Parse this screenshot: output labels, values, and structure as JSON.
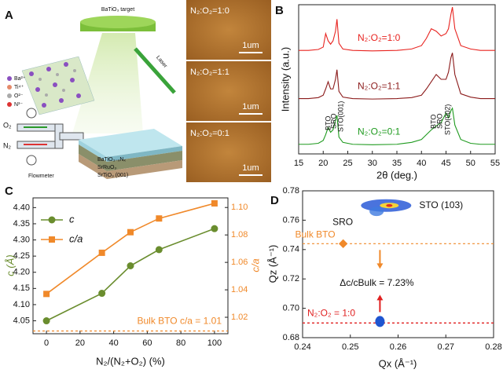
{
  "panel_a": {
    "label": "A",
    "target": "BaTiO₃ target",
    "laser": "Laser",
    "ions": [
      "Ba²⁺",
      "Ti⁴⁺",
      "O²⁻",
      "N³⁻"
    ],
    "gases": [
      "O₂",
      "N₂"
    ],
    "flowmeter": "Flowmeter",
    "layers": [
      "BaTiO₃₋ₓNₓ",
      "SrRuO₃",
      "SrTiO₃ (001)"
    ],
    "afm": [
      {
        "label": "N₂:O₂=1:0",
        "scale": "1um"
      },
      {
        "label": "N₂:O₂=1:1",
        "scale": "1um"
      },
      {
        "label": "N₂:O₂=0:1",
        "scale": "1um"
      }
    ]
  },
  "chart_data": [
    {
      "type": "line",
      "label": "B",
      "ylabel": "Intensity (a.u.)",
      "xlabel": "2θ (deg.)",
      "x": [
        15,
        17,
        19,
        20,
        20.5,
        21,
        21.5,
        22,
        22.5,
        22.8,
        23.2,
        24,
        26,
        30,
        35,
        38,
        40,
        41,
        42,
        43,
        44,
        45,
        45.5,
        46,
        46.3,
        46.8,
        48,
        50,
        52,
        55
      ],
      "xlim": [
        15,
        55
      ],
      "xticks": [
        15,
        20,
        25,
        30,
        35,
        40,
        45,
        50,
        55
      ],
      "ylim": [
        0,
        3.1
      ],
      "series": [
        {
          "name": "N₂:O₂=1:0",
          "color": "#e8231f",
          "values": [
            2.15,
            2.15,
            2.17,
            2.22,
            2.5,
            2.35,
            2.28,
            2.35,
            2.55,
            2.8,
            2.3,
            2.18,
            2.15,
            2.14,
            2.15,
            2.18,
            2.25,
            2.4,
            2.6,
            2.55,
            2.45,
            2.5,
            2.6,
            2.9,
            3.05,
            2.6,
            2.25,
            2.18,
            2.15,
            2.15
          ]
        },
        {
          "name": "N₂:O₂=1:1",
          "color": "#8b1a1a",
          "values": [
            1.15,
            1.15,
            1.17,
            1.22,
            1.35,
            1.5,
            1.35,
            1.35,
            1.55,
            1.75,
            1.3,
            1.18,
            1.15,
            1.14,
            1.15,
            1.17,
            1.22,
            1.35,
            1.5,
            1.65,
            1.55,
            1.55,
            1.7,
            2.0,
            2.1,
            1.65,
            1.25,
            1.18,
            1.15,
            1.15
          ]
        },
        {
          "name": "N₂:O₂=0:1",
          "color": "#1e9a1e",
          "values": [
            0.2,
            0.2,
            0.22,
            0.28,
            0.4,
            0.55,
            0.45,
            0.5,
            0.7,
            0.8,
            0.35,
            0.24,
            0.2,
            0.19,
            0.2,
            0.24,
            0.3,
            0.4,
            0.5,
            0.58,
            0.65,
            0.85,
            0.75,
            0.9,
            0.95,
            0.6,
            0.3,
            0.22,
            0.2,
            0.2
          ]
        }
      ],
      "annotations": [
        "BTO",
        "SRO",
        "STO(001)",
        "BTO",
        "SRO",
        "STO(002)"
      ]
    },
    {
      "type": "line",
      "label": "C",
      "xlabel": "N₂/(N₂+O₂) (%)",
      "ylabel": "c (Å)",
      "y2label": "c/a",
      "x": [
        0,
        33,
        50,
        67,
        100
      ],
      "xlim": [
        -8,
        108
      ],
      "xticks": [
        0,
        20,
        40,
        60,
        80,
        100
      ],
      "ylim": [
        4.01,
        4.43
      ],
      "yticks": [
        4.05,
        {
          "value": 4.1,
          "label": "4.10"
        },
        4.15,
        {
          "value": 4.2,
          "label": "4.20"
        },
        4.25,
        {
          "value": 4.3,
          "label": "4.30"
        },
        4.35,
        {
          "value": 4.4,
          "label": "4.40"
        }
      ],
      "y2lim": [
        1.008,
        1.107
      ],
      "y2ticks": [
        1.02,
        1.04,
        1.06,
        1.08,
        {
          "value": 1.1,
          "label": "1.10"
        }
      ],
      "legend": "upper left",
      "series": [
        {
          "name": "c",
          "color": "#6a8d2e",
          "marker": "circle",
          "values": [
            4.05,
            4.135,
            4.22,
            4.27,
            4.335
          ]
        },
        {
          "name": "c/a",
          "color": "#f0892a",
          "marker": "square",
          "axis": "y2",
          "values": [
            1.037,
            1.067,
            1.082,
            1.092,
            1.103
          ]
        }
      ],
      "hline": {
        "value": 1.01,
        "axis": "y2",
        "color": "#f0892a",
        "label": "Bulk BTO c/a = 1.01"
      }
    },
    {
      "type": "scatter",
      "label": "D",
      "xlabel": "Qx (Å⁻¹)",
      "ylabel": "Qz (Å⁻¹)",
      "xlim": [
        0.24,
        0.28
      ],
      "xticks": [
        0.24,
        0.25,
        0.26,
        0.27,
        0.28
      ],
      "ylim": [
        0.68,
        0.78
      ],
      "yticks": [
        0.68,
        {
          "value": 0.7,
          "label": "0.70"
        },
        0.72,
        0.74,
        0.76,
        0.78
      ],
      "peaks": [
        {
          "label": "STO (103)",
          "x": 0.2575,
          "y": 0.77
        },
        {
          "label": "SRO",
          "x": 0.2555,
          "y": 0.766
        },
        {
          "x": 0.2562,
          "y": 0.691
        }
      ],
      "points": [
        {
          "name": "Bulk BTO",
          "x": 0.2485,
          "y": 0.744,
          "color": "#f0892a"
        }
      ],
      "hlines": [
        {
          "value": 0.69,
          "color": "#e02020",
          "label": "N₂:O₂ = 1:0"
        }
      ],
      "annotation": "Δc/cBulk = 7.23%"
    }
  ]
}
